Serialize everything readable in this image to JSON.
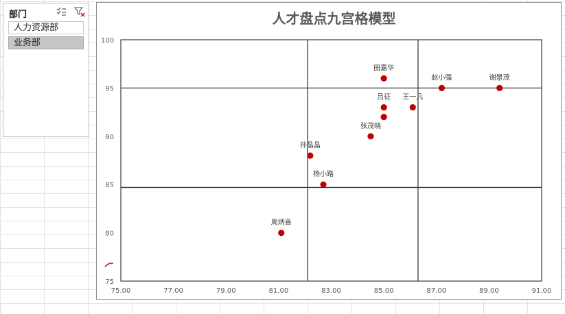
{
  "slicer": {
    "title": "部门",
    "icons": [
      "multi-select-icon",
      "clear-filter-icon"
    ],
    "items": [
      {
        "label": "人力资源部",
        "selected": false
      },
      {
        "label": "业务部",
        "selected": true
      }
    ]
  },
  "chart_data": {
    "type": "scatter",
    "title": "人才盘点九宫格模型",
    "xlim": [
      75,
      91
    ],
    "ylim": [
      75,
      100
    ],
    "xticks": [
      "75.00",
      "77.00",
      "79.00",
      "81.00",
      "83.00",
      "85.00",
      "87.00",
      "89.00",
      "91.00"
    ],
    "yticks": [
      "75",
      "80",
      "85",
      "90",
      "95",
      "100"
    ],
    "grid": false,
    "divider_lines": {
      "x": [
        82.1,
        86.3
      ],
      "y": [
        84.7,
        95
      ]
    },
    "marker_color": "#c00000",
    "points": [
      {
        "label": "田嘉华",
        "x": 85.0,
        "y": 96
      },
      {
        "label": "赵小强",
        "x": 87.2,
        "y": 95
      },
      {
        "label": "谢景茂",
        "x": 89.4,
        "y": 95
      },
      {
        "label": "王一凡",
        "x": 86.1,
        "y": 93
      },
      {
        "label": "吕征",
        "x": 85.0,
        "y": 93
      },
      {
        "label": "",
        "x": 85.0,
        "y": 92
      },
      {
        "label": "张茂晓",
        "x": 84.5,
        "y": 90
      },
      {
        "label": "孙晶晶",
        "x": 82.2,
        "y": 88
      },
      {
        "label": "杨小路",
        "x": 82.7,
        "y": 85
      },
      {
        "label": "周炳喜",
        "x": 81.1,
        "y": 80
      }
    ]
  }
}
